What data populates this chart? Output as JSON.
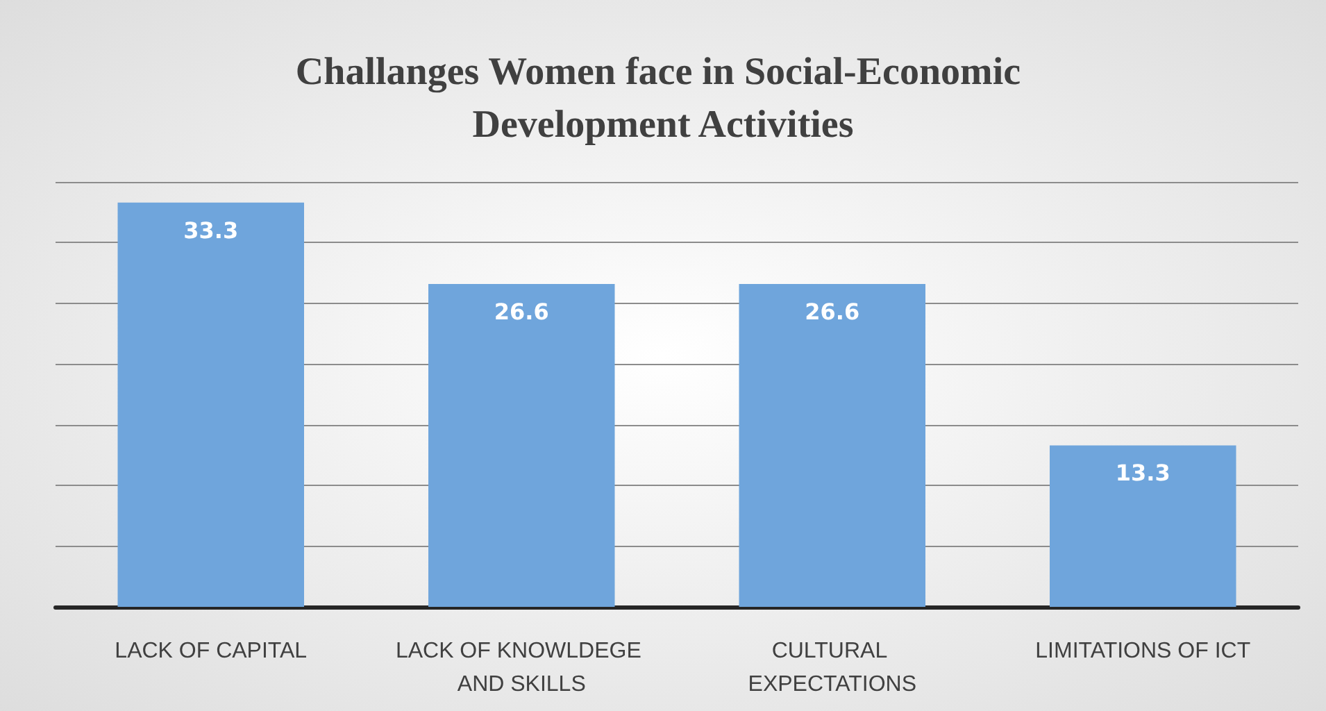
{
  "chart_data": {
    "type": "bar",
    "title": "Challanges Women face in Social-Economic Development Activities",
    "categories": [
      "LACK OF CAPITAL",
      "LACK OF KNOWLDEGE AND SKILLS",
      "CULTURAL EXPECTATIONS",
      "LIMITATIONS OF ICT"
    ],
    "values": [
      33.3,
      26.6,
      26.6,
      13.3
    ],
    "color": "#6fa5dc",
    "data_labels": true,
    "ylim": [
      0,
      35
    ],
    "yticks": [
      {
        "value": 0,
        "label": null
      },
      {
        "value": 5,
        "label": null
      },
      {
        "value": 10,
        "label": null
      },
      {
        "value": 15,
        "label": null
      },
      {
        "value": 20,
        "label": null
      },
      {
        "value": 25,
        "label": null
      },
      {
        "value": 30,
        "label": null
      },
      {
        "value": 35,
        "label": null
      }
    ],
    "grid": "y",
    "tick_labels": "x"
  }
}
